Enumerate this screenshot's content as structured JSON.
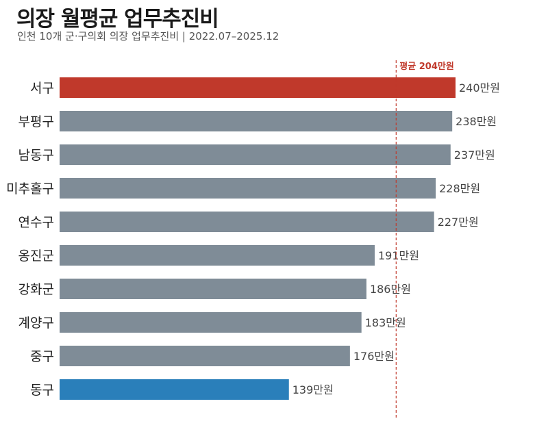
{
  "header": {
    "title": "의장 월평균 업무추진비",
    "subtitle": "인천 10개 군·구의회 의장 업무추진비 | 2022.07–2025.12"
  },
  "chart_data": {
    "type": "bar",
    "orientation": "horizontal",
    "title": "의장 월평균 업무추진비",
    "subtitle": "인천 10개 군·구의회 의장 업무추진비 | 2022.07–2025.12",
    "unit_suffix": "만원",
    "categories": [
      "서구",
      "부평구",
      "남동구",
      "미추홀구",
      "연수구",
      "옹진군",
      "강화군",
      "계양구",
      "중구",
      "동구"
    ],
    "values": [
      240,
      238,
      237,
      228,
      227,
      191,
      186,
      183,
      176,
      139
    ],
    "value_labels": [
      "240만원",
      "238만원",
      "237만원",
      "228만원",
      "227만원",
      "191만원",
      "186만원",
      "183만원",
      "176만원",
      "139만원"
    ],
    "average": {
      "value": 204,
      "label": "평균 204만원"
    },
    "xlim": [
      0,
      240
    ],
    "grid": false,
    "colors": {
      "highest": "#c0392b",
      "lowest": "#2a7fba",
      "default": "#7f8c97",
      "average_line": "#c0392b"
    }
  }
}
